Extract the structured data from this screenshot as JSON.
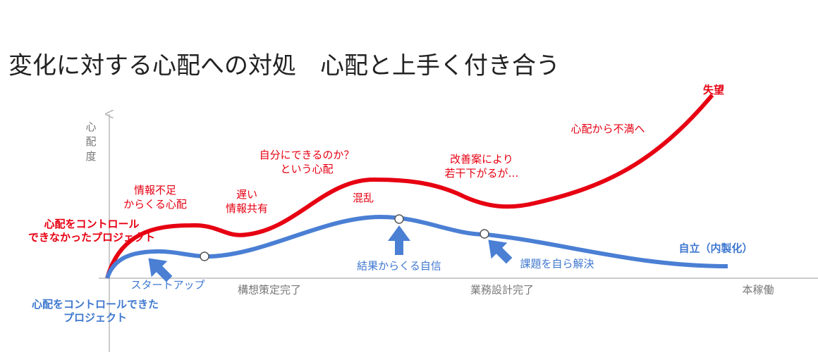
{
  "title": "変化に対する心配への対処　心配と上手く付き合う",
  "y_axis_label": "心配度",
  "milestones": [
    "構想策定完了",
    "業務設計完了",
    "本稼働"
  ],
  "red_curve": {
    "label": [
      "心配をコントロール",
      "できなかったプロジェクト"
    ],
    "end_label": "失望",
    "annotations": [
      [
        "情報不足",
        "からくる心配"
      ],
      [
        "遅い",
        "情報共有"
      ],
      [
        "自分にできるのか？",
        "という心配"
      ],
      [
        "混乱"
      ],
      [
        "改善案により",
        "若干下がるが…"
      ],
      [
        "心配から不満へ"
      ]
    ]
  },
  "blue_curve": {
    "label": [
      "心配をコントロールできた",
      "プロジェクト"
    ],
    "end_label": "自立（内製化）",
    "annotations": [
      "スタートアップ",
      "結果からくる自信",
      "課題を自ら解決"
    ]
  }
}
